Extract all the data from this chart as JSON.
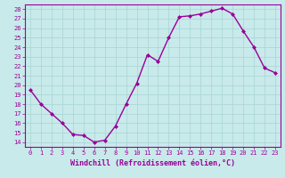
{
  "x": [
    0,
    1,
    2,
    3,
    4,
    5,
    6,
    7,
    8,
    9,
    10,
    11,
    12,
    13,
    14,
    15,
    16,
    17,
    18,
    19,
    20,
    21,
    22,
    23
  ],
  "y": [
    19.5,
    18.0,
    17.0,
    16.0,
    14.8,
    14.7,
    14.0,
    14.2,
    15.7,
    18.0,
    20.2,
    23.2,
    22.5,
    25.0,
    27.2,
    27.3,
    27.5,
    27.8,
    28.1,
    27.5,
    25.7,
    24.0,
    21.8,
    21.3
  ],
  "line_color": "#990099",
  "marker": "D",
  "marker_size": 2.0,
  "linewidth": 1.0,
  "xlabel": "Windchill (Refroidissement éolien,°C)",
  "xlabel_fontsize": 6.0,
  "xlim": [
    -0.5,
    23.5
  ],
  "ylim": [
    13.5,
    28.5
  ],
  "yticks": [
    14,
    15,
    16,
    17,
    18,
    19,
    20,
    21,
    22,
    23,
    24,
    25,
    26,
    27,
    28
  ],
  "xticks": [
    0,
    1,
    2,
    3,
    4,
    5,
    6,
    7,
    8,
    9,
    10,
    11,
    12,
    13,
    14,
    15,
    16,
    17,
    18,
    19,
    20,
    21,
    22,
    23
  ],
  "bg_color": "#c8eaea",
  "grid_color": "#a8d4d4",
  "tick_fontsize": 5.0,
  "tick_color": "#990099",
  "axis_color": "#990099",
  "spine_color": "#990099"
}
